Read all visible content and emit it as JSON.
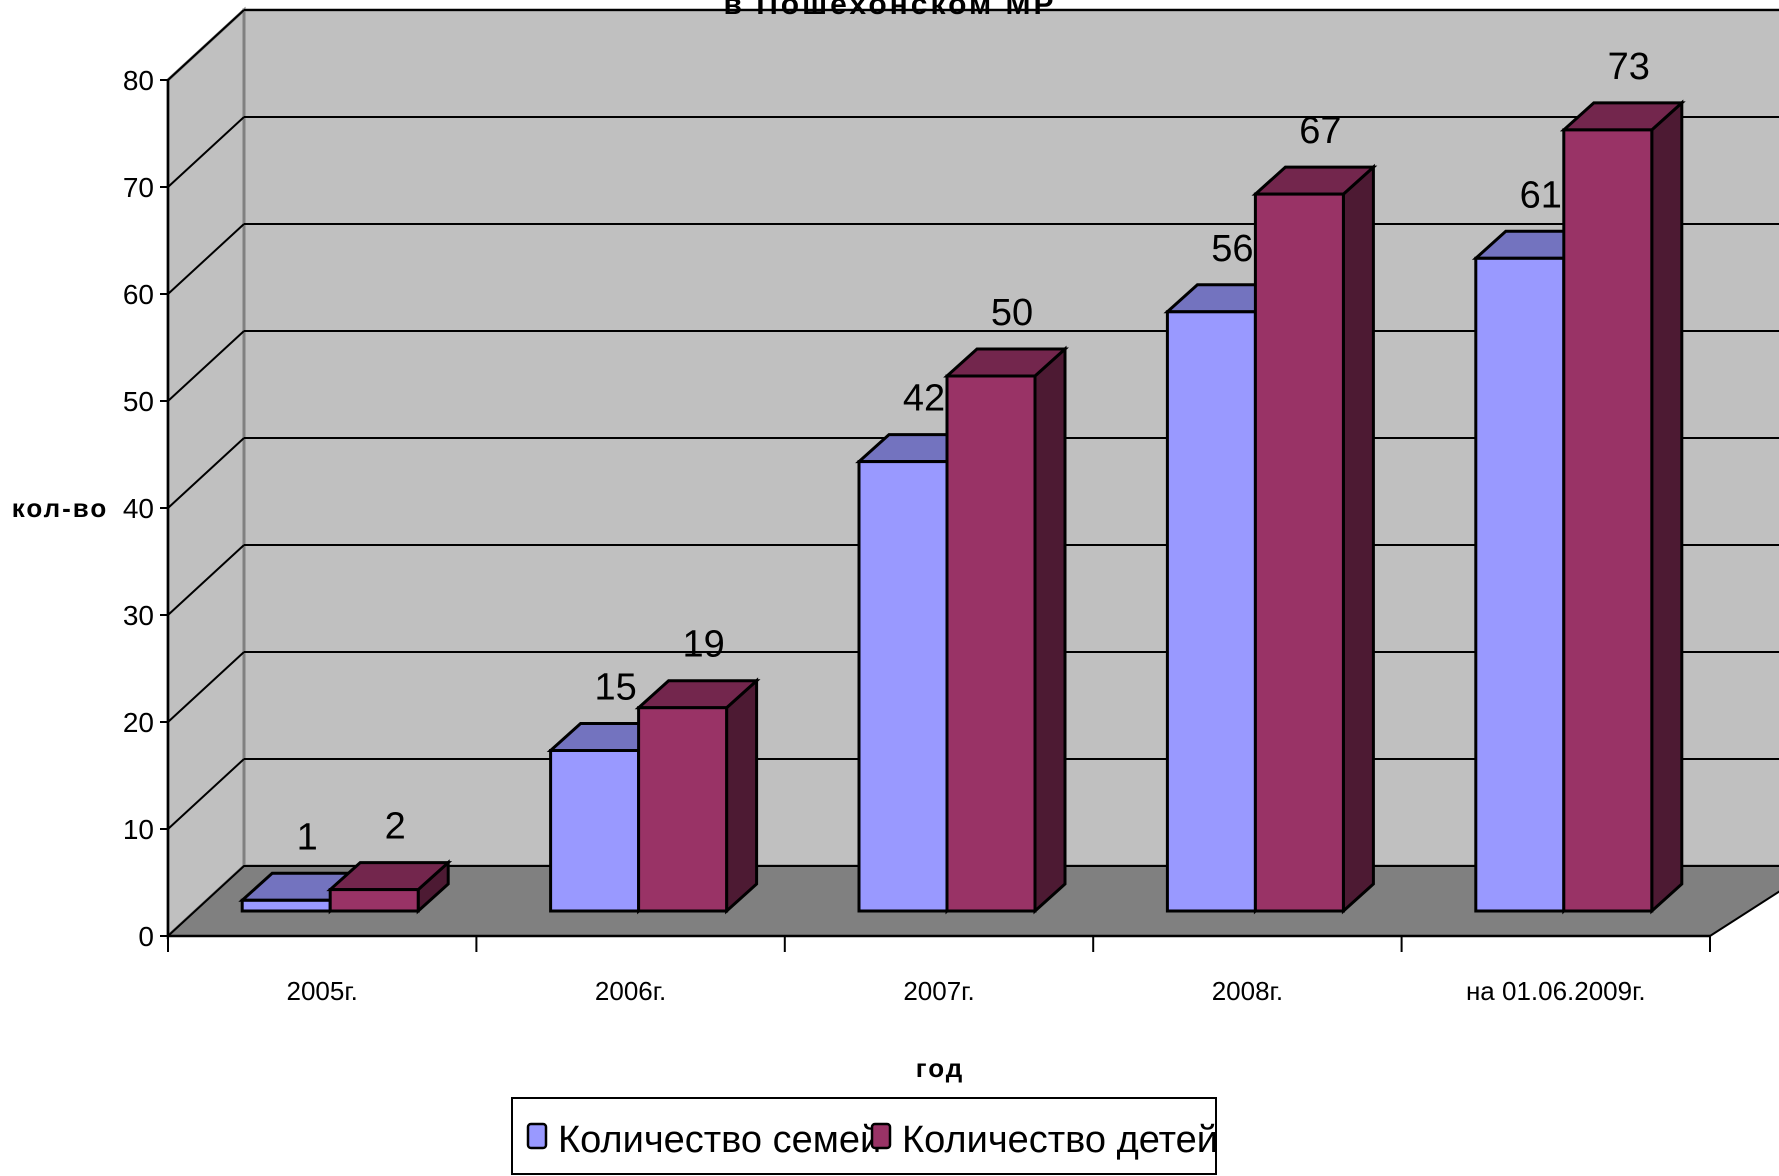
{
  "chart_data": {
    "type": "bar",
    "title": "в Пошехонском МР",
    "xlabel": "год",
    "ylabel": "кол-во",
    "categories": [
      "2005г.",
      "2006г.",
      "2007г.",
      "2008г.",
      "на 01.06.2009г."
    ],
    "series": [
      {
        "name": "Количество семей",
        "values": [
          1,
          15,
          42,
          56,
          61
        ],
        "color": "#9999ff"
      },
      {
        "name": "Количество детей",
        "values": [
          2,
          19,
          50,
          67,
          73
        ],
        "color": "#993366"
      }
    ],
    "ylim": [
      0,
      80
    ],
    "yticks": [
      0,
      10,
      20,
      30,
      40,
      50,
      60,
      70,
      80
    ],
    "grid": true,
    "legend_position": "bottom",
    "style": "3d-clustered-column",
    "colors": {
      "wall": "#c0c0c0",
      "floor": "#808080",
      "grid": "#000000"
    }
  }
}
